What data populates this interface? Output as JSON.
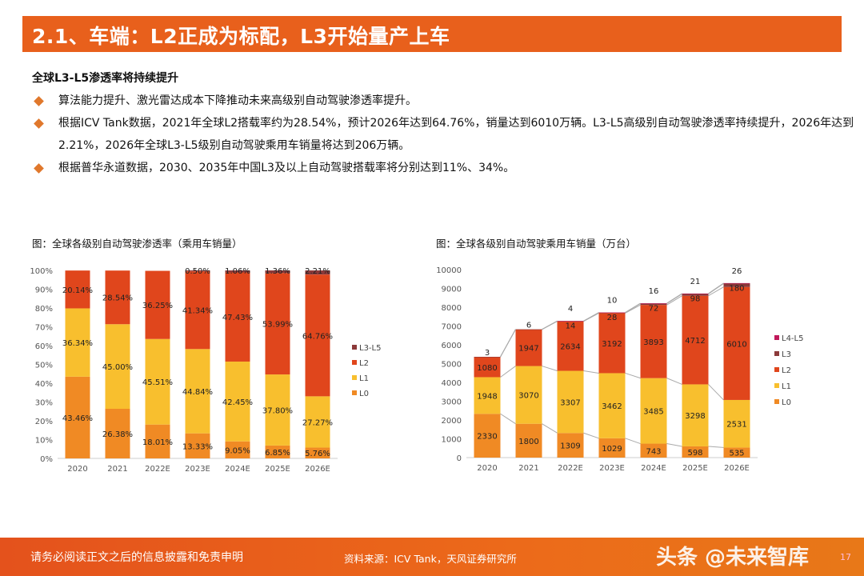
{
  "header": {
    "title": "2.1、车端：L2正成为标配，L3开始量产上车"
  },
  "subtitle": "全球L3-L5渗透率将持续提升",
  "bullets": [
    "算法能力提升、激光雷达成本下降推动未来高级别自动驾驶渗透率提升。",
    "根据ICV Tank数据，2021年全球L2搭载率约为28.54%，预计2026年达到64.76%，销量达到6010万辆。L3-L5高级别自动驾驶渗透率持续提升，2026年达到2.21%，2026年全球L3-L5级别自动驾驶乘用车销量将达到206万辆。",
    "根据普华永道数据，2030、2035年中国L3及以上自动驾驶搭载率将分别达到11%、34%。"
  ],
  "footer": {
    "disclaimer": "请务必阅读正文之后的信息披露和免责申明",
    "source": "资料来源：ICV Tank，天风证券研究所",
    "watermark": "头条 @未来智库",
    "page": "17"
  },
  "chart_data": [
    {
      "type": "bar",
      "stacked": true,
      "title": "图：全球各级别自动驾驶渗透率（乘用车销量）",
      "categories": [
        "2020",
        "2021",
        "2022E",
        "2023E",
        "2024E",
        "2025E",
        "2026E"
      ],
      "ylim": [
        0,
        100
      ],
      "yticks": [
        "0%",
        "10%",
        "20%",
        "30%",
        "40%",
        "50%",
        "60%",
        "70%",
        "80%",
        "90%",
        "100%"
      ],
      "legend_position": "right",
      "series": [
        {
          "name": "L0",
          "color": "#f08a24",
          "values": [
            43.46,
            26.38,
            18.01,
            13.33,
            9.05,
            6.85,
            5.76
          ],
          "labels": [
            "43.46%",
            "26.38%",
            "18.01%",
            "13.33%",
            "9.05%",
            "6.85%",
            "5.76%"
          ]
        },
        {
          "name": "L1",
          "color": "#f8bf2e",
          "values": [
            36.34,
            45.0,
            45.51,
            44.84,
            42.45,
            37.8,
            27.27
          ],
          "labels": [
            "36.34%",
            "45.00%",
            "45.51%",
            "44.84%",
            "42.45%",
            "37.80%",
            "27.27%"
          ]
        },
        {
          "name": "L2",
          "color": "#e0461c",
          "values": [
            20.14,
            28.54,
            36.25,
            41.34,
            47.43,
            53.99,
            64.76
          ],
          "labels": [
            "20.14%",
            "28.54%",
            "36.25%",
            "41.34%",
            "47.43%",
            "53.99%",
            "64.76%"
          ]
        },
        {
          "name": "L3-L5",
          "color": "#8c3a3a",
          "values": [
            null,
            null,
            null,
            0.5,
            1.06,
            1.36,
            2.21
          ],
          "labels": [
            null,
            null,
            null,
            "0.50%",
            "1.06%",
            "1.36%",
            "2.21%"
          ]
        }
      ]
    },
    {
      "type": "bar",
      "stacked": true,
      "title": "图：全球各级别自动驾驶乘用车销量（万台）",
      "categories": [
        "2020",
        "2021",
        "2022E",
        "2023E",
        "2024E",
        "2025E",
        "2026E"
      ],
      "ylim": [
        0,
        10000
      ],
      "yticks": [
        "0",
        "1000",
        "2000",
        "3000",
        "4000",
        "5000",
        "6000",
        "7000",
        "8000",
        "9000",
        "10000"
      ],
      "legend_position": "right",
      "series": [
        {
          "name": "L0",
          "color": "#f08a24",
          "values": [
            2330,
            1800,
            1309,
            1029,
            743,
            598,
            535
          ]
        },
        {
          "name": "L1",
          "color": "#f8bf2e",
          "values": [
            1948,
            3070,
            3307,
            3462,
            3485,
            3298,
            2531
          ]
        },
        {
          "name": "L2",
          "color": "#e0461c",
          "values": [
            1080,
            1947,
            2634,
            3192,
            3893,
            4712,
            6010
          ]
        },
        {
          "name": "L3",
          "color": "#8c3a3a",
          "values": [
            3,
            6,
            14,
            28,
            72,
            98,
            180
          ]
        },
        {
          "name": "L4-L5",
          "color": "#c0185a",
          "values": [
            null,
            null,
            4,
            10,
            16,
            21,
            26
          ]
        }
      ]
    }
  ]
}
